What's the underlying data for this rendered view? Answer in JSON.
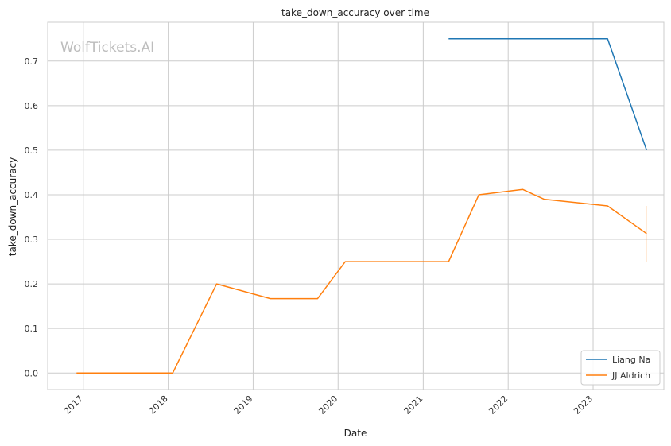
{
  "chart_data": {
    "type": "line",
    "title": "take_down_accuracy over time",
    "xlabel": "Date",
    "ylabel": "take_down_accuracy",
    "watermark": "WolfTickets.AI",
    "x_ticks": [
      "2017",
      "2018",
      "2019",
      "2020",
      "2021",
      "2022",
      "2023"
    ],
    "y_ticks": [
      "0.0",
      "0.1",
      "0.2",
      "0.3",
      "0.4",
      "0.5",
      "0.6",
      "0.7"
    ],
    "xlim": [
      "2016-08-01",
      "2023-11-01"
    ],
    "ylim": [
      -0.037,
      0.787
    ],
    "grid": true,
    "legend_position": "bottom-right",
    "series": [
      {
        "name": "Liang Na",
        "color": "#1f77b4",
        "points": [
          {
            "x": "2021-04-20",
            "y": 0.75
          },
          {
            "x": "2023-03-04",
            "y": 0.75
          },
          {
            "x": "2023-08-19",
            "y": 0.5
          }
        ]
      },
      {
        "name": "JJ Aldrich",
        "color": "#ff7f0e",
        "points": [
          {
            "x": "2016-12-03",
            "y": 0.0
          },
          {
            "x": "2018-01-20",
            "y": 0.0
          },
          {
            "x": "2018-07-28",
            "y": 0.2
          },
          {
            "x": "2019-03-16",
            "y": 0.167
          },
          {
            "x": "2019-10-05",
            "y": 0.167
          },
          {
            "x": "2020-02-01",
            "y": 0.25
          },
          {
            "x": "2021-04-20",
            "y": 0.25
          },
          {
            "x": "2021-08-28",
            "y": 0.4
          },
          {
            "x": "2022-03-05",
            "y": 0.412
          },
          {
            "x": "2022-06-04",
            "y": 0.39
          },
          {
            "x": "2023-03-04",
            "y": 0.375
          },
          {
            "x": "2023-08-19",
            "y": 0.313
          }
        ],
        "error_band": {
          "x": "2023-08-19",
          "low": 0.25,
          "high": 0.375
        }
      }
    ]
  }
}
